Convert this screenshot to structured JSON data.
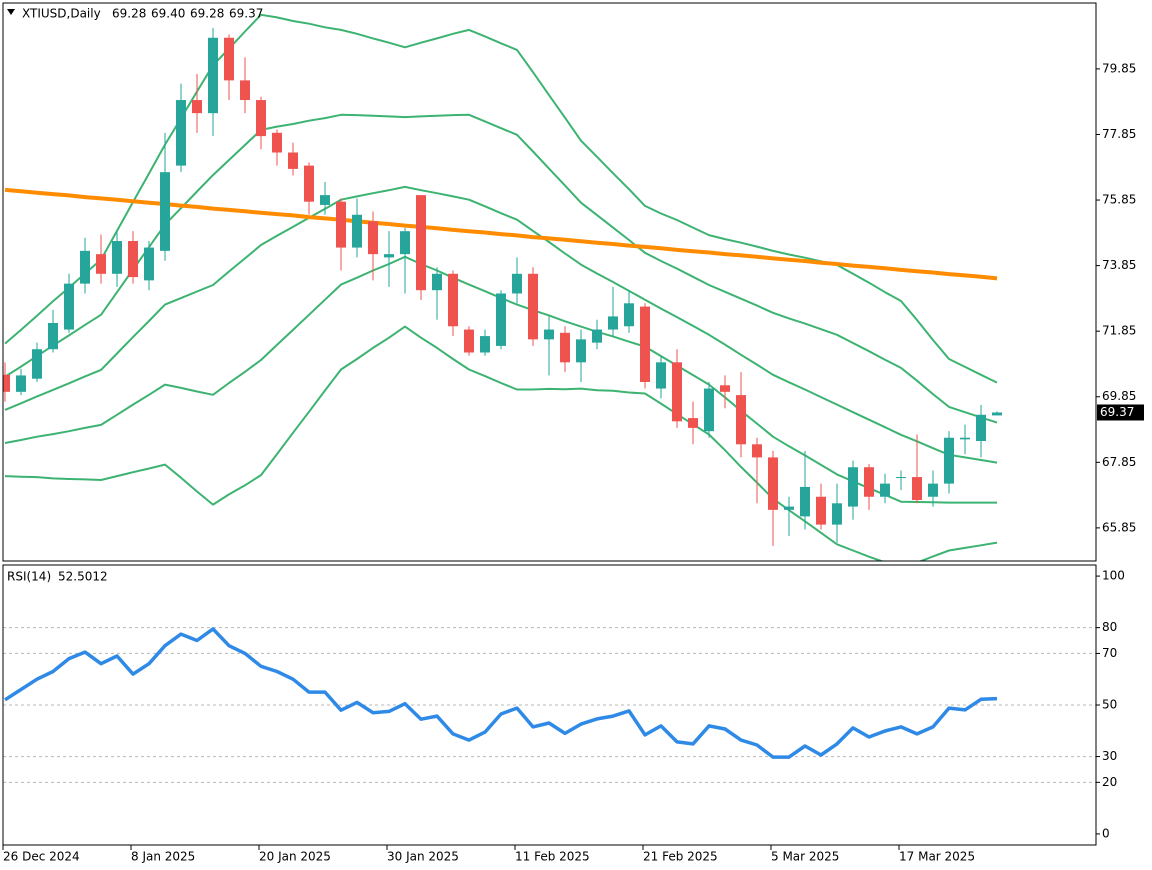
{
  "chart_data": [
    {
      "type": "candlestick",
      "title": "XTIUSD,Daily",
      "header_values": [
        "69.28",
        "69.40",
        "69.28",
        "69.37"
      ],
      "categories": [
        "26 Dec 2024",
        null,
        null,
        null,
        null,
        null,
        null,
        null,
        "8 Jan 2025",
        null,
        null,
        null,
        null,
        null,
        null,
        null,
        "20 Jan 2025",
        null,
        null,
        null,
        null,
        null,
        null,
        null,
        "30 Jan 2025",
        null,
        null,
        null,
        null,
        null,
        null,
        null,
        "11 Feb 2025",
        null,
        null,
        null,
        null,
        null,
        null,
        null,
        "21 Feb 2025",
        null,
        null,
        null,
        null,
        null,
        null,
        null,
        "5 Mar 2025",
        null,
        null,
        null,
        null,
        null,
        null,
        null,
        "17 Mar 2025",
        null,
        null,
        null,
        null,
        null,
        null
      ],
      "open": [
        70.52,
        70.0,
        70.4,
        71.3,
        71.9,
        73.3,
        74.2,
        73.6,
        74.6,
        73.4,
        74.3,
        76.9,
        78.9,
        78.5,
        80.8,
        79.5,
        78.9,
        77.9,
        77.3,
        76.9,
        75.7,
        75.8,
        74.4,
        75.2,
        74.1,
        74.2,
        76.0,
        73.1,
        73.6,
        71.9,
        71.2,
        71.4,
        73.0,
        73.6,
        71.6,
        71.8,
        70.9,
        71.5,
        71.9,
        72.0,
        72.6,
        70.1,
        70.9,
        69.2,
        68.8,
        70.2,
        69.9,
        68.4,
        68.0,
        66.4,
        66.2,
        66.8,
        65.95,
        66.5,
        67.7,
        66.8,
        67.4,
        67.4,
        66.8,
        67.2,
        68.55,
        68.5,
        69.28
      ],
      "high": [
        70.9,
        70.7,
        71.5,
        72.5,
        73.6,
        74.7,
        74.8,
        74.9,
        74.9,
        74.6,
        77.9,
        79.4,
        79.7,
        81.1,
        80.9,
        80.2,
        79.0,
        78.0,
        77.6,
        77.0,
        76.4,
        75.9,
        75.9,
        75.5,
        74.9,
        75.0,
        76.0,
        73.8,
        73.7,
        72.0,
        71.9,
        73.1,
        74.1,
        73.8,
        72.3,
        72.0,
        71.9,
        72.2,
        73.2,
        73.1,
        72.7,
        71.1,
        71.3,
        69.7,
        70.3,
        70.5,
        70.6,
        68.6,
        68.2,
        66.8,
        68.2,
        67.2,
        67.2,
        67.9,
        67.8,
        67.5,
        67.6,
        68.7,
        67.6,
        68.8,
        69.0,
        69.6,
        69.4
      ],
      "low": [
        69.7,
        69.9,
        70.3,
        71.2,
        71.8,
        73.0,
        73.3,
        73.2,
        73.3,
        73.1,
        74.0,
        76.7,
        77.9,
        77.8,
        78.9,
        78.5,
        77.4,
        76.9,
        76.6,
        75.4,
        75.4,
        73.7,
        74.1,
        73.4,
        73.2,
        73.0,
        72.8,
        72.2,
        71.7,
        71.1,
        71.1,
        71.3,
        72.7,
        71.4,
        70.5,
        70.6,
        70.3,
        71.3,
        71.7,
        71.8,
        70.1,
        69.8,
        68.9,
        68.4,
        68.6,
        69.5,
        68.0,
        66.6,
        65.3,
        65.6,
        65.8,
        65.8,
        65.4,
        66.1,
        66.4,
        66.6,
        67.0,
        66.6,
        66.5,
        66.9,
        68.1,
        68.0,
        69.28
      ],
      "close": [
        70.0,
        70.5,
        71.3,
        72.1,
        73.3,
        74.3,
        73.6,
        74.6,
        73.5,
        74.4,
        76.7,
        78.9,
        78.5,
        80.8,
        79.5,
        78.9,
        77.8,
        77.3,
        76.8,
        75.8,
        76.0,
        74.4,
        75.4,
        74.2,
        74.2,
        74.9,
        73.1,
        73.6,
        72.0,
        71.2,
        71.7,
        73.0,
        73.6,
        71.6,
        71.9,
        70.9,
        71.6,
        71.9,
        72.3,
        72.7,
        70.3,
        70.9,
        69.1,
        68.9,
        70.1,
        70.0,
        68.4,
        68.0,
        66.4,
        66.5,
        67.1,
        65.95,
        66.6,
        67.7,
        66.8,
        67.2,
        67.4,
        66.7,
        67.2,
        68.6,
        68.6,
        69.3,
        69.37
      ],
      "up_color": "#26a69a",
      "down_color": "#ef5350",
      "overlays": [
        {
          "kind": "band",
          "color": "#3cb371",
          "values": [
            71.47,
            71.89,
            72.32,
            72.76,
            73.18,
            73.61,
            74.03,
            74.91,
            75.79,
            76.66,
            77.54,
            78.34,
            79.16,
            79.96,
            80.47,
            80.99,
            81.5,
            81.42,
            81.31,
            81.23,
            81.12,
            81.04,
            80.92,
            80.78,
            80.65,
            80.51,
            80.65,
            80.78,
            80.92,
            81.04,
            80.84,
            80.63,
            80.43,
            79.75,
            79.05,
            78.36,
            77.66,
            77.17,
            76.67,
            76.18,
            75.67,
            75.44,
            75.24,
            75.01,
            74.78,
            74.66,
            74.55,
            74.43,
            74.3,
            74.19,
            74.09,
            73.98,
            73.87,
            73.6,
            73.33,
            73.04,
            72.77,
            72.19,
            71.58,
            71.0,
            70.76,
            70.52,
            70.28
          ]
        },
        {
          "kind": "band",
          "color": "#3cb371",
          "values": [
            70.46,
            70.77,
            71.09,
            71.41,
            71.72,
            72.04,
            72.35,
            73.04,
            73.73,
            74.41,
            75.1,
            75.6,
            76.11,
            76.61,
            77.07,
            77.53,
            77.99,
            78.09,
            78.17,
            78.27,
            78.35,
            78.45,
            78.44,
            78.42,
            78.4,
            78.38,
            78.4,
            78.42,
            78.44,
            78.45,
            78.25,
            78.04,
            77.84,
            77.33,
            76.81,
            76.29,
            75.77,
            75.39,
            75.01,
            74.63,
            74.24,
            73.99,
            73.76,
            73.51,
            73.26,
            73.05,
            72.84,
            72.63,
            72.41,
            72.24,
            72.08,
            71.91,
            71.74,
            71.49,
            71.24,
            70.98,
            70.73,
            70.34,
            69.93,
            69.54,
            69.38,
            69.22,
            69.06
          ]
        },
        {
          "kind": "band",
          "color": "#3cb371",
          "values": [
            69.45,
            69.65,
            69.86,
            70.06,
            70.26,
            70.47,
            70.67,
            71.17,
            71.67,
            72.16,
            72.66,
            72.86,
            73.06,
            73.26,
            73.67,
            74.07,
            74.48,
            74.76,
            75.03,
            75.31,
            75.58,
            75.86,
            75.96,
            76.06,
            76.15,
            76.25,
            76.15,
            76.06,
            75.96,
            75.86,
            75.66,
            75.45,
            75.25,
            74.91,
            74.57,
            74.22,
            73.88,
            73.61,
            73.35,
            73.08,
            72.81,
            72.54,
            72.28,
            72.01,
            71.74,
            71.44,
            71.13,
            70.83,
            70.52,
            70.29,
            70.07,
            69.84,
            69.61,
            69.38,
            69.15,
            68.92,
            68.69,
            68.49,
            68.28,
            68.08,
            68.0,
            67.92,
            67.84
          ]
        },
        {
          "kind": "band",
          "color": "#3cb371",
          "values": [
            68.44,
            68.53,
            68.63,
            68.71,
            68.8,
            68.9,
            68.99,
            69.3,
            69.61,
            69.91,
            70.22,
            70.12,
            70.01,
            69.91,
            70.27,
            70.61,
            70.97,
            71.43,
            71.89,
            72.35,
            72.81,
            73.27,
            73.48,
            73.7,
            73.9,
            74.12,
            73.9,
            73.7,
            73.48,
            73.27,
            73.07,
            72.86,
            72.66,
            72.49,
            72.33,
            72.15,
            71.99,
            71.83,
            71.69,
            71.53,
            71.38,
            71.09,
            70.8,
            70.51,
            70.22,
            69.83,
            69.42,
            69.03,
            68.63,
            68.34,
            68.06,
            67.77,
            67.48,
            67.27,
            67.06,
            66.86,
            66.65,
            66.64,
            66.63,
            66.62,
            66.62,
            66.62,
            66.62
          ]
        },
        {
          "kind": "band",
          "color": "#3cb371",
          "values": [
            67.43,
            67.41,
            67.4,
            67.36,
            67.34,
            67.33,
            67.31,
            67.43,
            67.55,
            67.66,
            67.78,
            67.38,
            66.96,
            66.56,
            66.87,
            67.15,
            67.46,
            68.1,
            68.75,
            69.39,
            70.04,
            70.68,
            71.0,
            71.34,
            71.65,
            71.99,
            71.65,
            71.34,
            71.0,
            70.68,
            70.48,
            70.27,
            70.07,
            70.07,
            70.09,
            70.08,
            70.1,
            70.05,
            70.03,
            69.98,
            69.95,
            69.64,
            69.32,
            69.01,
            68.7,
            68.22,
            67.71,
            67.23,
            66.74,
            66.39,
            66.05,
            65.7,
            65.35,
            65.16,
            64.97,
            64.8,
            64.61,
            64.79,
            64.98,
            65.16,
            65.24,
            65.32,
            65.4
          ]
        },
        {
          "kind": "ma",
          "color": "#ff8c00",
          "values": [
            76.16,
            76.12,
            76.07,
            76.03,
            75.99,
            75.94,
            75.9,
            75.86,
            75.81,
            75.77,
            75.73,
            75.68,
            75.64,
            75.59,
            75.55,
            75.51,
            75.46,
            75.42,
            75.38,
            75.33,
            75.29,
            75.25,
            75.2,
            75.16,
            75.12,
            75.07,
            75.03,
            74.99,
            74.94,
            74.9,
            74.86,
            74.81,
            74.77,
            74.72,
            74.68,
            74.64,
            74.59,
            74.55,
            74.51,
            74.46,
            74.42,
            74.38,
            74.33,
            74.29,
            74.25,
            74.2,
            74.16,
            74.12,
            74.07,
            74.03,
            73.99,
            73.94,
            73.9,
            73.85,
            73.81,
            73.77,
            73.72,
            73.68,
            73.64,
            73.59,
            73.55,
            73.51,
            73.46
          ]
        }
      ],
      "last_price_color": "#000000",
      "ylim": [
        64.84,
        81.86
      ],
      "yticks": [
        65.85,
        67.85,
        69.85,
        71.85,
        73.85,
        75.85,
        77.85,
        79.85
      ]
    },
    {
      "type": "line",
      "title": "RSI(14)",
      "current_value": 52.5012,
      "color": "#2e8ae6",
      "values": [
        52,
        56,
        60,
        63,
        68,
        70.5,
        66,
        69,
        62,
        66,
        73,
        77.5,
        75,
        79.5,
        73,
        70,
        65,
        63,
        60,
        55,
        55,
        48,
        51,
        47,
        47.5,
        50.5,
        44.5,
        45.7,
        38.8,
        36.4,
        39.5,
        46.5,
        48.8,
        41.5,
        43,
        39,
        42.6,
        44.6,
        45.7,
        47.7,
        38.4,
        41.9,
        35.7,
        34.9,
        41.9,
        40.7,
        36.4,
        34.5,
        29.8,
        29.8,
        34.1,
        30.6,
        34.9,
        41.1,
        37.6,
        39.9,
        41.5,
        38.8,
        41.5,
        48.8,
        48.1,
        52.2,
        52.5
      ],
      "ylim": [
        -4.3,
        104.3
      ],
      "yticks": [
        0,
        20,
        30,
        50,
        70,
        80,
        100
      ],
      "grid_levels": [
        20,
        30,
        50,
        70,
        80
      ]
    }
  ]
}
